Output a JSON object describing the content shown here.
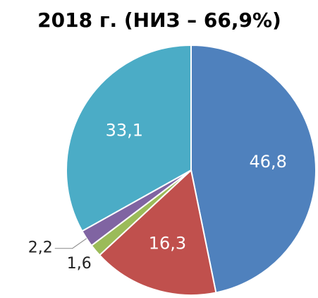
{
  "chart_data": {
    "type": "pie",
    "title": "2018 г. (НИЗ – 66,9%)",
    "values": [
      46.8,
      16.3,
      1.6,
      2.2,
      33.1
    ],
    "value_labels": [
      "46,8",
      "16,3",
      "1,6",
      "2,2",
      "33,1"
    ],
    "colors": [
      "#4f81bd",
      "#c0504d",
      "#9bbb59",
      "#8064a2",
      "#4bacc6"
    ]
  }
}
